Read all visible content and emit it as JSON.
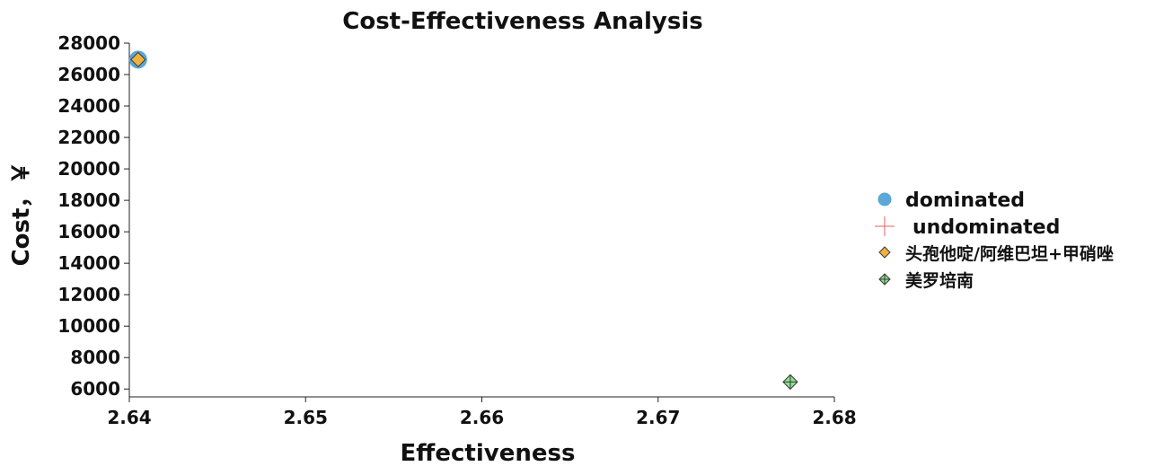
{
  "chart_data": {
    "type": "scatter",
    "title": "Cost-Effectiveness Analysis",
    "xlabel": "Effectiveness",
    "ylabel": "Cost，￥",
    "xlim": [
      2.64,
      2.68
    ],
    "ylim": [
      5500,
      28000
    ],
    "xticks": [
      "2.64",
      "2.65",
      "2.66",
      "2.67",
      "2.68"
    ],
    "yticks": [
      "6000",
      "8000",
      "10000",
      "12000",
      "14000",
      "16000",
      "18000",
      "20000",
      "22000",
      "24000",
      "26000",
      "28000"
    ],
    "grid": false,
    "legend_position": "right",
    "series": [
      {
        "name": "dominated",
        "marker": "circle",
        "color": "#5aa7d8",
        "points": [
          {
            "x": 2.6405,
            "y": 26950
          }
        ]
      },
      {
        "name": "undominated",
        "marker": "plus",
        "color": "#e06060",
        "points": []
      },
      {
        "name": "头孢他啶/阿维巴坦+甲硝唑",
        "marker": "diamond",
        "color": "#f0b040",
        "points": [
          {
            "x": 2.6405,
            "y": 26950
          }
        ]
      },
      {
        "name": "美罗培南",
        "marker": "diamond-cross",
        "color": "#8fe08f",
        "points": [
          {
            "x": 2.6775,
            "y": 6450
          }
        ]
      }
    ]
  }
}
